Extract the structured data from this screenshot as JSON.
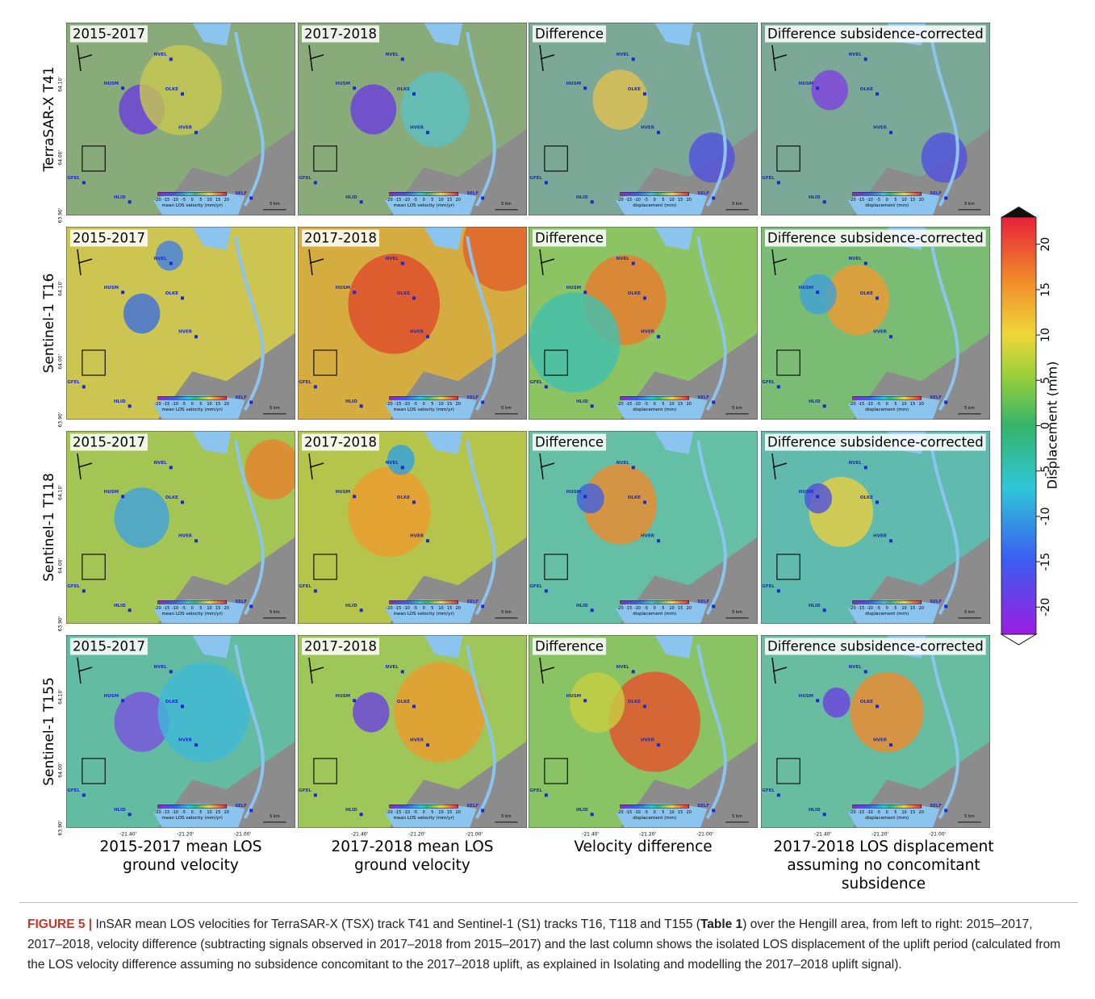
{
  "figure": {
    "rows": [
      "TerraSAR-X T41",
      "Sentinel-1 T16",
      "Sentinel-1 T118",
      "Sentinel-1 T155"
    ],
    "panel_titles": [
      "2015-2017",
      "2017-2018",
      "Difference",
      "Difference subsidence-corrected"
    ],
    "inset_labels": [
      "mean LOS velocity (mm/yr)",
      "mean LOS velocity (mm/yr)",
      "displacement (mm)",
      "displacement (mm)"
    ],
    "inset_ticks": [
      -20,
      -15,
      -10,
      -5,
      0,
      5,
      10,
      15,
      20
    ],
    "scale_bar": "5 km",
    "stations": [
      "NVEL",
      "HUSM",
      "OLKE",
      "HVER",
      "GFEL",
      "HLID",
      "SELF"
    ],
    "lat_labels": [
      "64.10'",
      "64.00'",
      "63.90'"
    ],
    "lon_labels": [
      "-21.40'",
      "-21.20'",
      "-21.00'"
    ],
    "column_captions": [
      [
        "2015-2017 mean LOS",
        "ground velocity"
      ],
      [
        "2017-2018 mean LOS",
        "ground velocity"
      ],
      [
        "Velocity difference"
      ],
      [
        "2017-2018 LOS displacement",
        "assuming no concomitant",
        "subsidence"
      ]
    ],
    "colorbar": {
      "label": "Displacement (mm)",
      "lim": [
        -23,
        23
      ],
      "ticks": [
        20,
        15,
        10,
        5,
        0,
        -5,
        -10,
        -15,
        -20
      ]
    }
  },
  "caption": {
    "label": "FIGURE 5 |",
    "before": "InSAR mean LOS velocities for TerraSAR-X (TSX) track T41 and Sentinel-1 (S1) tracks T16, T118 and T155 (",
    "bold": "Table 1",
    "after": ") over the Hengill area, from left to right: 2015–2017, 2017–2018, velocity difference (subtracting signals observed in 2017–2018 from 2015–2017) and the last column shows the isolated LOS displacement of the uplift period (calculated from the LOS velocity difference assuming no subsidence concomitant to the 2017–2018 uplift, as explained in Isolating and modelling the 2017–2018 uplift signal)."
  }
}
